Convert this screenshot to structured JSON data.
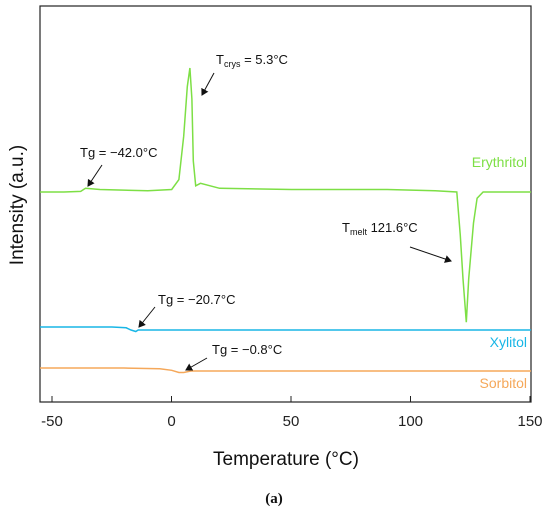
{
  "chart_data": {
    "type": "line",
    "xlabel": "Temperature (°C)",
    "ylabel": "Intensity (a.u.)",
    "xlim": [
      -55,
      150
    ],
    "x_ticks": [
      "-50",
      "0",
      "50",
      "100",
      "150"
    ],
    "x_tick_values": [
      -50,
      0,
      50,
      100,
      150
    ],
    "y_ticks_shown": false,
    "grid": false,
    "caption": "(a)",
    "series": [
      {
        "name": "Erythritol",
        "color": "#7ddf45",
        "points": [
          [
            -55,
            0.0
          ],
          [
            -45,
            0.0
          ],
          [
            -38,
            0.005
          ],
          [
            -36,
            0.03
          ],
          [
            -30,
            0.02
          ],
          [
            -10,
            0.01
          ],
          [
            0,
            0.02
          ],
          [
            3,
            0.1
          ],
          [
            5,
            0.45
          ],
          [
            6.5,
            0.85
          ],
          [
            7.6,
            1.0
          ],
          [
            8.4,
            0.75
          ],
          [
            9,
            0.25
          ],
          [
            10,
            0.05
          ],
          [
            12,
            0.07
          ],
          [
            20,
            0.03
          ],
          [
            50,
            0.02
          ],
          [
            70,
            0.02
          ],
          [
            90,
            0.02
          ],
          [
            110,
            0.01
          ],
          [
            119,
            0.0
          ],
          [
            120.5,
            -0.35
          ],
          [
            121.6,
            -0.7
          ],
          [
            123,
            -1.05
          ],
          [
            124,
            -0.7
          ],
          [
            126,
            -0.25
          ],
          [
            127.5,
            -0.05
          ],
          [
            130,
            0.0
          ],
          [
            150,
            0.0
          ]
        ]
      },
      {
        "name": "Xylitol",
        "color": "#18b6e6",
        "points": [
          [
            -55,
            0.0
          ],
          [
            -25,
            0.0
          ],
          [
            -19,
            -0.005
          ],
          [
            -17,
            -0.02
          ],
          [
            -15,
            -0.03
          ],
          [
            -14,
            -0.02
          ],
          [
            -10,
            -0.02
          ],
          [
            20,
            -0.02
          ],
          [
            50,
            -0.02
          ],
          [
            100,
            -0.02
          ],
          [
            150,
            -0.02
          ]
        ]
      },
      {
        "name": "Sorbitol",
        "color": "#f5a85a",
        "points": [
          [
            -55,
            0.0
          ],
          [
            -20,
            0.0
          ],
          [
            -5,
            -0.005
          ],
          [
            0,
            -0.015
          ],
          [
            3,
            -0.03
          ],
          [
            5,
            -0.03
          ],
          [
            8,
            -0.02
          ],
          [
            20,
            -0.02
          ],
          [
            60,
            -0.02
          ],
          [
            100,
            -0.02
          ],
          [
            150,
            -0.02
          ]
        ]
      }
    ],
    "annotations": [
      {
        "main": "Tg = −42.0°C",
        "sub": ""
      },
      {
        "main": "T",
        "sub": "crys",
        "rest": " = 5.3°C"
      },
      {
        "main": "T",
        "sub": "melt",
        "rest": " 121.6°C"
      },
      {
        "main": "Tg = −20.7°C",
        "sub": ""
      },
      {
        "main": "Tg = −0.8°C",
        "sub": ""
      }
    ]
  }
}
